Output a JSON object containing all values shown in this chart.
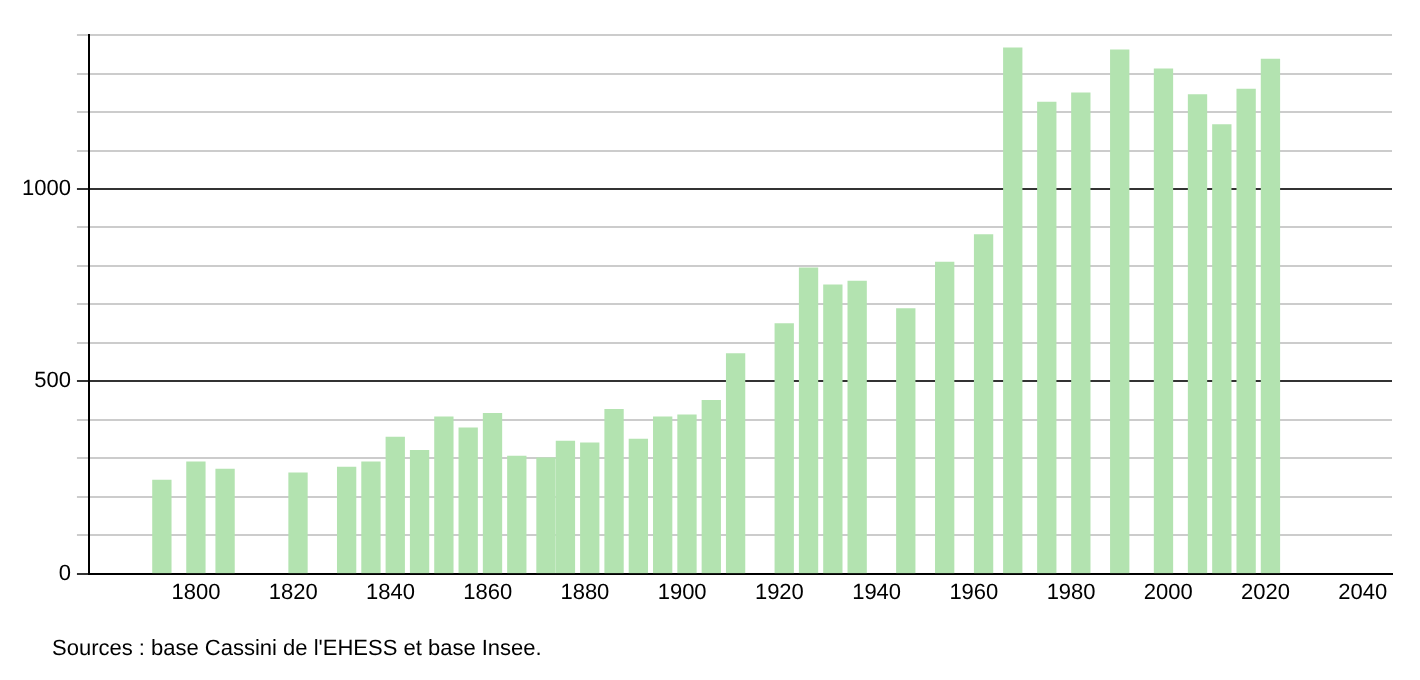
{
  "chart_data": {
    "type": "bar",
    "x": [
      1793,
      1800,
      1806,
      1821,
      1831,
      1836,
      1841,
      1846,
      1851,
      1856,
      1861,
      1866,
      1872,
      1876,
      1881,
      1886,
      1891,
      1896,
      1901,
      1906,
      1911,
      1921,
      1926,
      1931,
      1936,
      1946,
      1954,
      1962,
      1968,
      1975,
      1982,
      1990,
      1999,
      2006,
      2011,
      2016,
      2021
    ],
    "values": [
      242,
      290,
      271,
      261,
      276,
      290,
      354,
      320,
      407,
      378,
      416,
      305,
      300,
      344,
      339,
      426,
      349,
      407,
      412,
      450,
      571,
      649,
      794,
      750,
      760,
      688,
      809,
      881,
      1366,
      1225,
      1249,
      1361,
      1312,
      1245,
      1167,
      1259,
      1337
    ],
    "color": "#b3e3b0",
    "xlim": [
      1778,
      2046
    ],
    "xticks": [
      1800,
      1820,
      1840,
      1860,
      1880,
      1900,
      1920,
      1940,
      1960,
      1980,
      2000,
      2020,
      2040
    ],
    "ylim": [
      0,
      1400
    ],
    "yticks": [
      0,
      {
        "value": 100,
        "label": null
      },
      {
        "value": 200,
        "label": null
      },
      {
        "value": 300,
        "label": null
      },
      {
        "value": 400,
        "label": null
      },
      500,
      {
        "value": 600,
        "label": null
      },
      {
        "value": 700,
        "label": null
      },
      {
        "value": 800,
        "label": null
      },
      {
        "value": 900,
        "label": null
      },
      1000,
      {
        "value": 1100,
        "label": null
      },
      {
        "value": 1200,
        "label": null
      },
      {
        "value": 1300,
        "label": null
      },
      {
        "value": 1400,
        "label": null
      }
    ],
    "grid": "y",
    "annotations": [
      "Sources : base Cassini de l'EHESS et base Insee."
    ]
  }
}
